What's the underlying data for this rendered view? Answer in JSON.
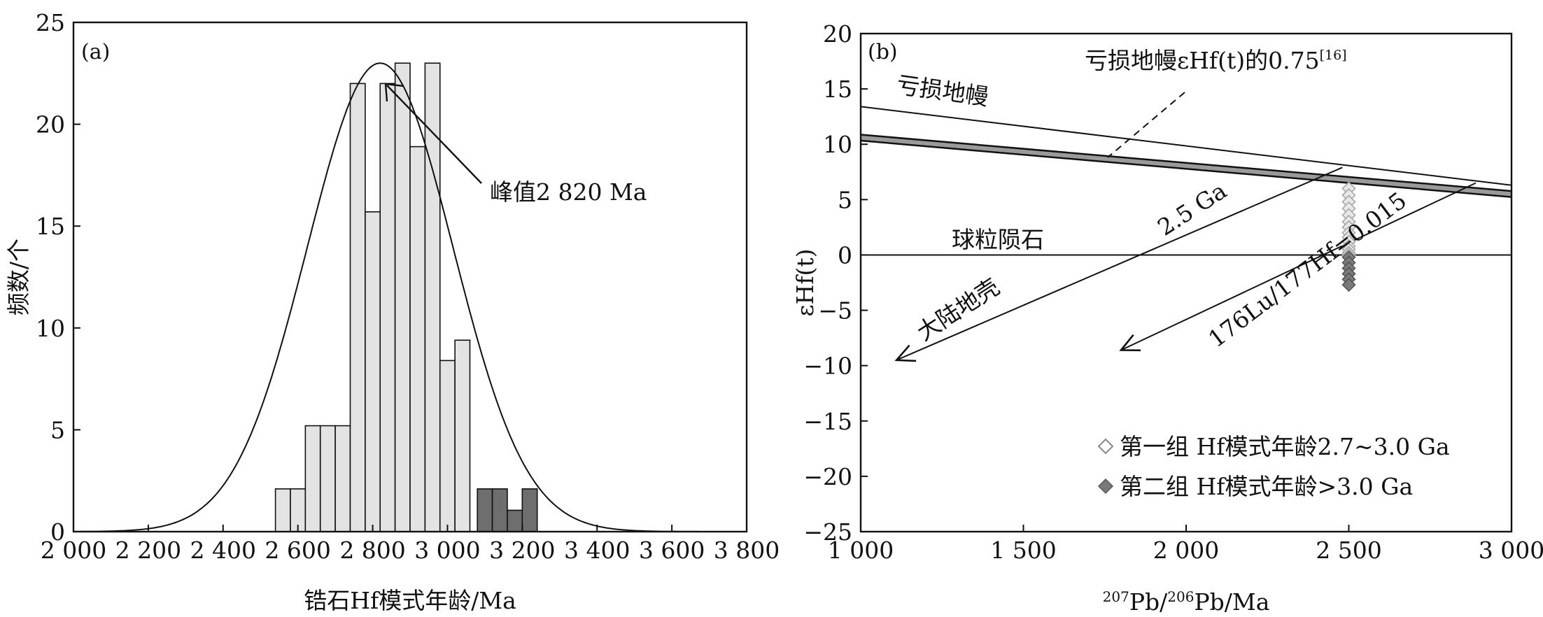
{
  "chart_data": [
    {
      "panel": "(a)",
      "type": "bar",
      "xlabel": "锆石Hf模式年龄/Ma",
      "ylabel": "频数/个",
      "xlim": [
        2000,
        3800
      ],
      "ylim": [
        0,
        25
      ],
      "xticks": [
        2000,
        2200,
        2400,
        2600,
        2800,
        3000,
        3200,
        3400,
        3600,
        3800
      ],
      "xtick_labels": [
        "2 000",
        "2 200",
        "2 400",
        "2 600",
        "2 800",
        "3 000",
        "3 200",
        "3 400",
        "3 600",
        "3 800"
      ],
      "yticks": [
        0,
        5,
        10,
        15,
        20,
        25
      ],
      "bin_width": 40,
      "series": [
        {
          "color": "#e3e3e3",
          "bins": [
            {
              "x0": 2540,
              "value": 2.1
            },
            {
              "x0": 2580,
              "value": 2.1
            },
            {
              "x0": 2620,
              "value": 5.2
            },
            {
              "x0": 2660,
              "value": 5.2
            },
            {
              "x0": 2700,
              "value": 5.2
            },
            {
              "x0": 2740,
              "value": 22
            },
            {
              "x0": 2780,
              "value": 15.7
            },
            {
              "x0": 2820,
              "value": 22
            },
            {
              "x0": 2860,
              "value": 23
            },
            {
              "x0": 2900,
              "value": 18.9
            },
            {
              "x0": 2940,
              "value": 23
            },
            {
              "x0": 2980,
              "value": 8.4
            },
            {
              "x0": 3020,
              "value": 9.4
            }
          ]
        },
        {
          "color": "#6e6e6e",
          "bins": [
            {
              "x0": 3080,
              "value": 2.1
            },
            {
              "x0": 3120,
              "value": 2.1
            },
            {
              "x0": 3160,
              "value": 1.05
            },
            {
              "x0": 3200,
              "value": 2.1
            }
          ]
        }
      ],
      "curve": {
        "type": "normal",
        "mean": 2820,
        "sd": 195,
        "peak": 23
      },
      "annotation": {
        "text": "峰值2 820 Ma",
        "arrow_to": [
          2835,
          22.8
        ]
      }
    },
    {
      "panel": "(b)",
      "type": "scatter",
      "xlabel": {
        "sup1": "207",
        "part1": "Pb/",
        "sup2": "206",
        "part2": "Pb/Ma"
      },
      "ylabel": "εHf(t)",
      "xlim": [
        1000,
        3000
      ],
      "ylim": [
        -25,
        20
      ],
      "xticks": [
        1000,
        1500,
        2000,
        2500,
        3000
      ],
      "xtick_labels": [
        "1 000",
        "1 500",
        "2 000",
        "2 500",
        "3 000"
      ],
      "yticks": [
        20,
        15,
        10,
        5,
        0,
        -5,
        -10,
        -15,
        -20,
        -25
      ],
      "ytick_labels": [
        "20",
        "15",
        "10",
        "5",
        "0",
        "−5",
        "−10",
        "−15",
        "−20",
        "−25"
      ],
      "lines": [
        {
          "label": "亏损地幔",
          "points": [
            [
              1000,
              13.4
            ],
            [
              3000,
              6.3
            ]
          ]
        },
        {
          "label": "亏损地幔εHf(t)的0.75",
          "label_ref": "[16]",
          "points": [
            [
              1000,
              10.6
            ],
            [
              3000,
              5.5
            ]
          ]
        },
        {
          "label": "球粒陨石",
          "points": [
            [
              1000,
              0
            ],
            [
              3000,
              0
            ]
          ]
        },
        {
          "label": "大陆地壳",
          "sublabel": "2.5 Ga",
          "points": [
            [
              1110,
              -9.5
            ],
            [
              2480,
              7.9
            ]
          ]
        },
        {
          "label": "176Lu/177Hf=0.015",
          "points": [
            [
              1800,
              -8.6
            ],
            [
              2890,
              6.5
            ]
          ]
        }
      ],
      "series": [
        {
          "name": "第一组 Hf模式年龄2.7~3.0 Ga",
          "marker": "diamond-open",
          "color": "#bdbdbd",
          "x": [
            2500,
            2500,
            2500,
            2500,
            2500,
            2500,
            2500,
            2500,
            2500,
            2500,
            2500,
            2500,
            2500,
            2500
          ],
          "y": [
            6,
            5.4,
            4.8,
            4.2,
            3.6,
            3.0,
            2.5,
            2.0,
            1.6,
            1.2,
            0.8,
            0.5,
            0.2,
            0.0
          ]
        },
        {
          "name": "第二组 Hf模式年龄>3.0 Ga",
          "marker": "diamond-filled",
          "color": "#7a7a7a",
          "x": [
            2500,
            2500,
            2500,
            2500,
            2500,
            2500
          ],
          "y": [
            -0.2,
            -0.7,
            -1.2,
            -1.7,
            -2.2,
            -2.7
          ]
        }
      ],
      "legend": {
        "position": "bottom-right"
      }
    }
  ]
}
